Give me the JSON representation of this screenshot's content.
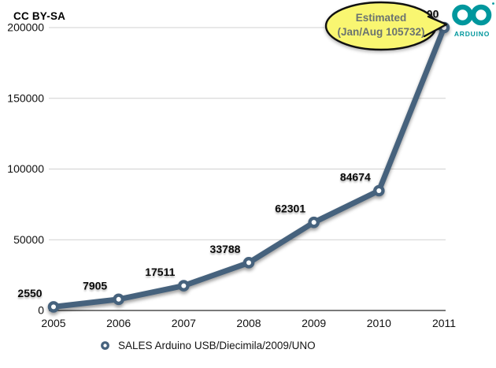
{
  "page": {
    "license": "CC BY-SA"
  },
  "logo": {
    "brand": "ARDUINO",
    "color": "#00979D"
  },
  "legend": {
    "label": "SALES Arduino USB/Diecimila/2009/UNO"
  },
  "colors": {
    "line": "#46627D",
    "grid": "#d0d0d0",
    "axis": "#4e4e4e",
    "callout_fill": "#F9F671",
    "callout_border": "#101010",
    "callout_text": "#6b7370",
    "marker_hole": "#ffffff"
  },
  "chart_data": {
    "type": "line",
    "title": "",
    "xlabel": "",
    "ylabel": "",
    "categories": [
      "2005",
      "2006",
      "2007",
      "2008",
      "2009",
      "2010",
      "2011"
    ],
    "series": [
      {
        "name": "SALES Arduino USB/Diecimila/2009/UNO",
        "values": [
          2550,
          7905,
          17511,
          33788,
          62301,
          84674,
          200000
        ]
      }
    ],
    "point_labels": [
      "2550",
      "7905",
      "17511",
      "33788",
      "62301",
      "84674",
      "200000"
    ],
    "ylim": [
      0,
      200000
    ],
    "yticks": [
      0,
      50000,
      100000,
      150000,
      200000
    ],
    "ytick_labels": [
      "0",
      "50000",
      "100000",
      "150000",
      "200000"
    ],
    "grid": true,
    "legend_position": "bottom",
    "annotation": {
      "target_category": "2011",
      "lines": [
        "Estimated",
        "(Jan/Aug 105732)"
      ]
    }
  }
}
